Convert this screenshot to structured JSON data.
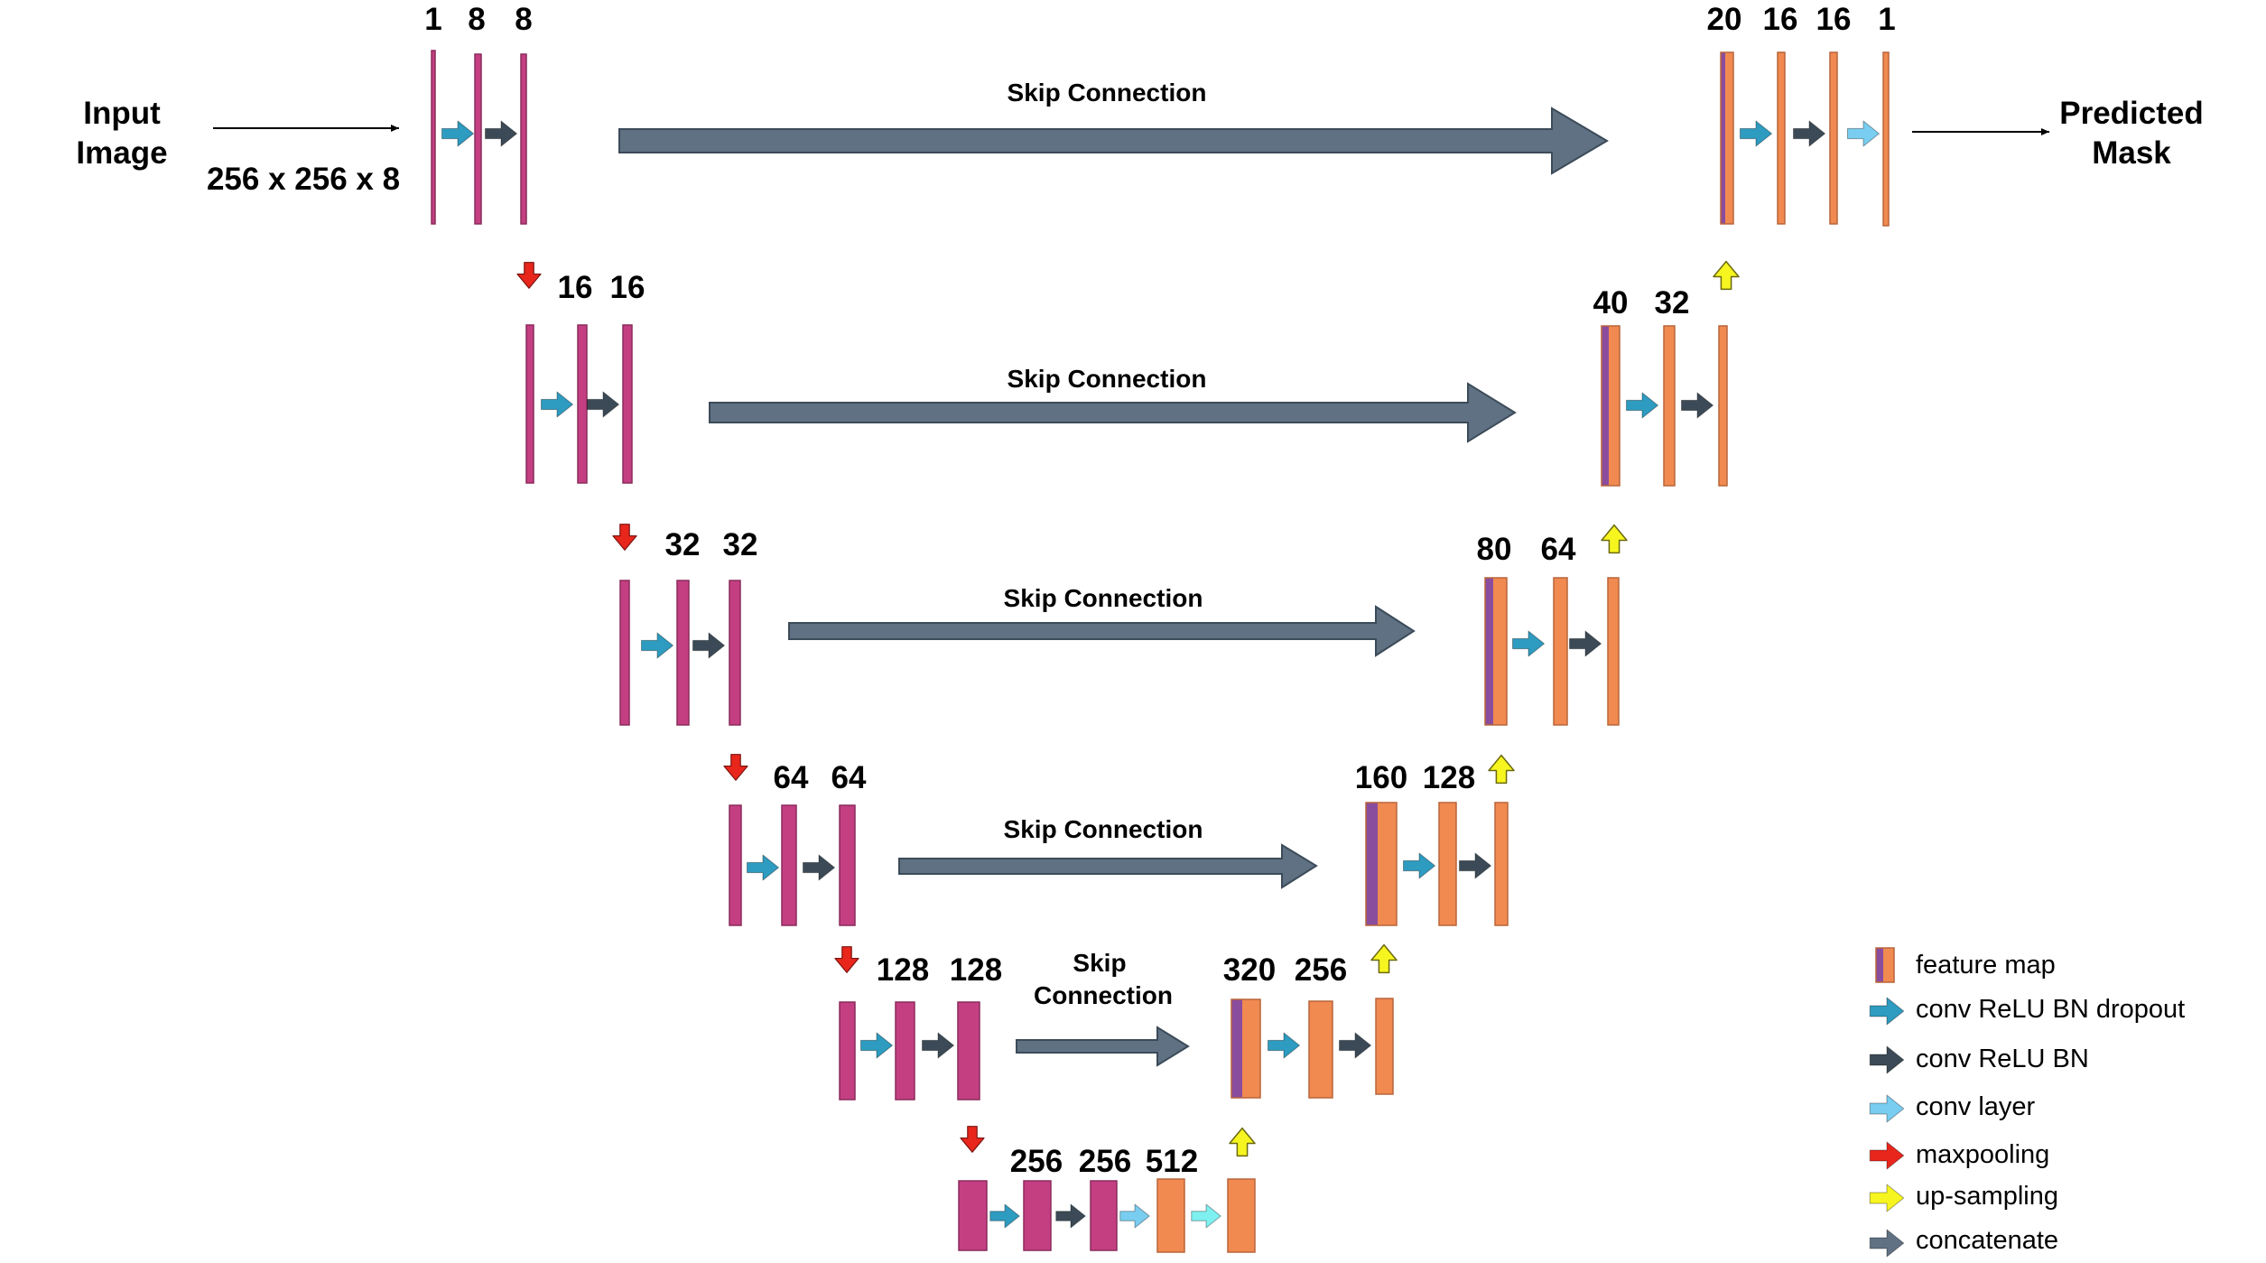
{
  "colors": {
    "encoder_fill": "#c43f82",
    "encoder_stroke": "#8a2c5c",
    "decoder_fill": "#f08a50",
    "decoder_stroke": "#b9653a",
    "concat_purple": "#8a4d9e",
    "arrow_conv_dropout": "#2e9bc0",
    "arrow_conv_bn": "#3b4a56",
    "arrow_conv_layer": "#79cdf0",
    "arrow_conv_layer_bottom": "#7df0ef",
    "arrow_maxpool": "#e8261c",
    "arrow_upsample": "#f7f520",
    "skip_fill": "#5f7183",
    "skip_stroke": "#3c4b59"
  },
  "input": {
    "line1": "Input",
    "line2": "Image",
    "shape": "256 x 256 x 8"
  },
  "output": {
    "line1": "Predicted",
    "line2": "Mask"
  },
  "skip": {
    "label": "Skip Connection",
    "label_l5_line1": "Skip",
    "label_l5_line2": "Connection"
  },
  "encoder": {
    "l1": [
      "1",
      "8",
      "8"
    ],
    "l2": [
      "16",
      "16"
    ],
    "l3": [
      "32",
      "32"
    ],
    "l4": [
      "64",
      "64"
    ],
    "l5": [
      "128",
      "128"
    ],
    "bottleneck": [
      "256",
      "256",
      "512"
    ]
  },
  "decoder": {
    "l1": [
      "20",
      "16",
      "16",
      "1"
    ],
    "l2": [
      "40",
      "32"
    ],
    "l3": [
      "80",
      "64"
    ],
    "l4": [
      "160",
      "128"
    ],
    "l5": [
      "320",
      "256"
    ]
  },
  "legend": {
    "feature_map": "feature map",
    "conv_relu_bn_dropout": "conv ReLU BN dropout",
    "conv_relu_bn": "conv ReLU BN",
    "conv_layer": "conv layer",
    "maxpooling": "maxpooling",
    "up_sampling": "up-sampling",
    "concatenate": "concatenate"
  }
}
